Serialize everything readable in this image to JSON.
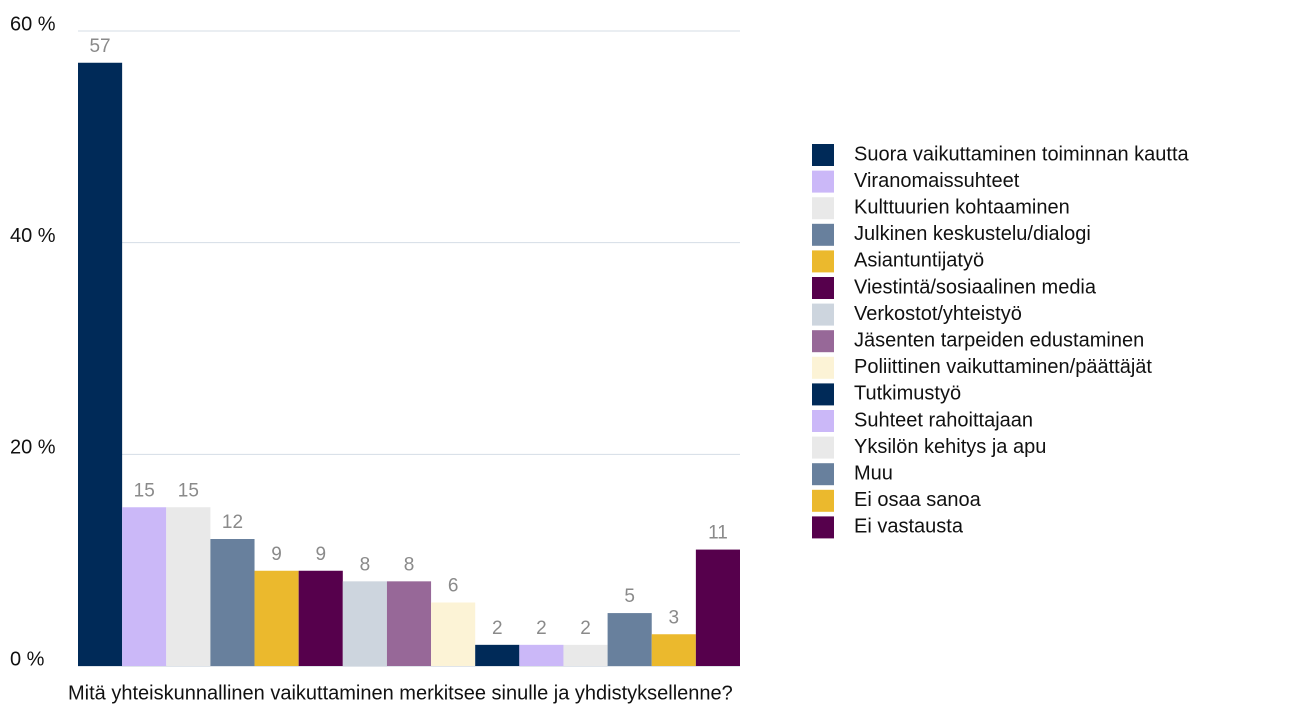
{
  "chart_data": {
    "type": "bar",
    "xlabel": "Mitä yhteiskunnallinen vaikuttaminen merkitsee sinulle ja yhdistyksellenne?",
    "ylim": [
      0,
      60
    ],
    "yticks": [
      {
        "value": 0,
        "label": "0 %"
      },
      {
        "value": 20,
        "label": "20 %"
      },
      {
        "value": 40,
        "label": "40 %"
      },
      {
        "value": 60,
        "label": "60 %"
      }
    ],
    "grid": true,
    "legend": "right",
    "series": [
      {
        "name": "Suora vaikuttaminen toiminnan kautta",
        "color": "#002a58",
        "values": [
          57
        ]
      },
      {
        "name": "Viranomaissuhteet",
        "color": "#cbb8f8",
        "values": [
          15
        ]
      },
      {
        "name": "Kulttuurien kohtaaminen",
        "color": "#e9e9e9",
        "values": [
          15
        ]
      },
      {
        "name": "Julkinen keskustelu/dialogi",
        "color": "#68809d",
        "values": [
          12
        ]
      },
      {
        "name": "Asiantuntijatyö",
        "color": "#ebb92d",
        "values": [
          9
        ]
      },
      {
        "name": "Viestintä/sosiaalinen media",
        "color": "#56004c",
        "values": [
          9
        ]
      },
      {
        "name": "Verkostot/yhteistyö",
        "color": "#cdd5de",
        "values": [
          8
        ]
      },
      {
        "name": "Jäsenten tarpeiden edustaminen",
        "color": "#976898",
        "values": [
          8
        ]
      },
      {
        "name": "Poliittinen vaikuttaminen/päättäjät",
        "color": "#fcf3d6",
        "values": [
          6
        ]
      },
      {
        "name": "Tutkimustyö",
        "color": "#002a58",
        "values": [
          2
        ]
      },
      {
        "name": "Suhteet rahoittajaan",
        "color": "#cbb8f8",
        "values": [
          2
        ]
      },
      {
        "name": "Yksilön kehitys ja apu",
        "color": "#e9e9e9",
        "values": [
          2
        ]
      },
      {
        "name": "Muu",
        "color": "#68809d",
        "values": [
          5
        ]
      },
      {
        "name": "Ei osaa sanoa",
        "color": "#ebb92d",
        "values": [
          3
        ]
      },
      {
        "name": "Ei vastausta",
        "color": "#56004c",
        "values": [
          11
        ]
      }
    ]
  }
}
